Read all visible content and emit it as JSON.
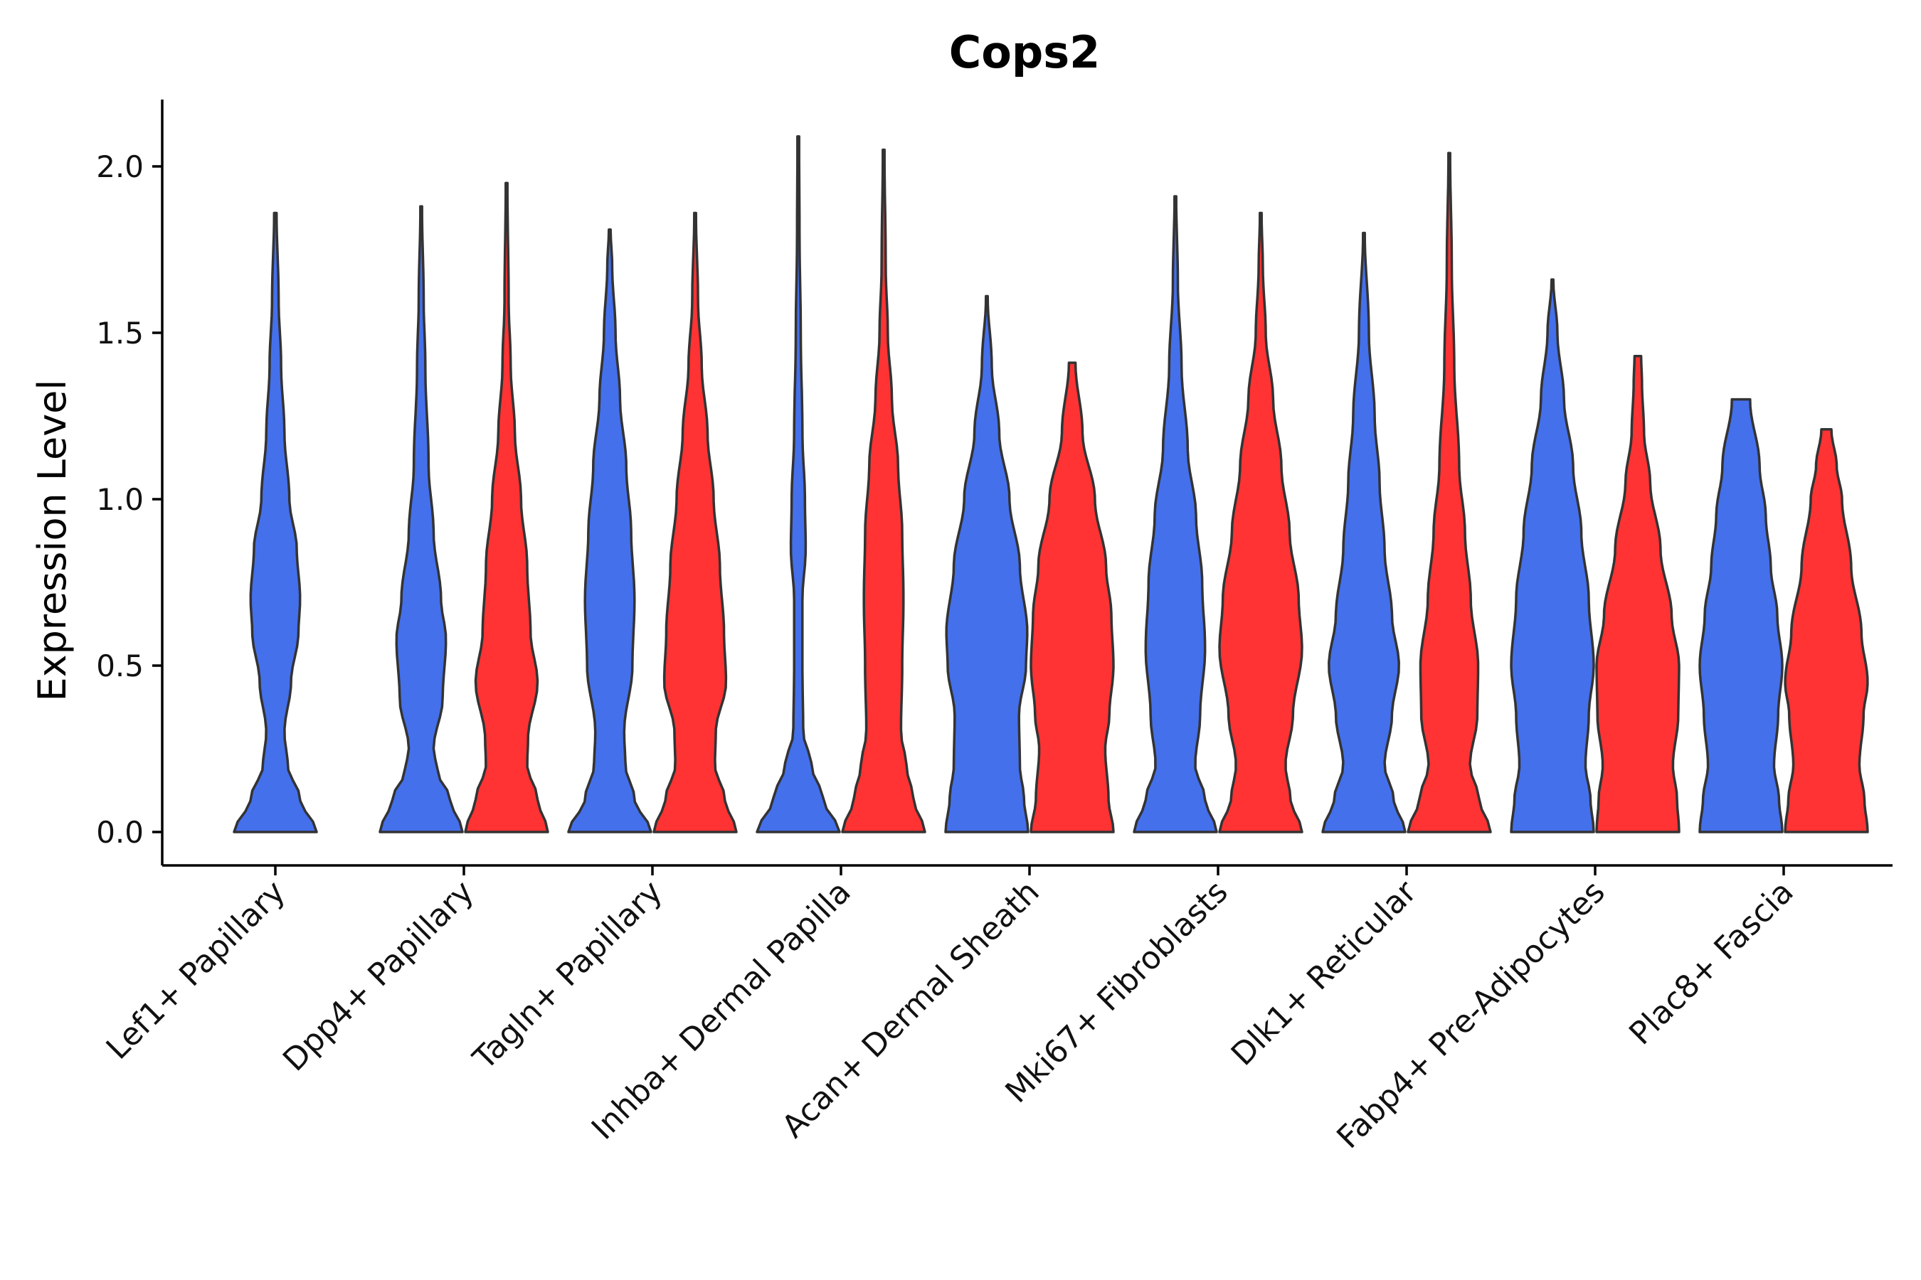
{
  "chart_data": {
    "type": "violin",
    "title": "Cops2",
    "xlabel": "",
    "ylabel": "Expression Level",
    "ylim": [
      -0.1,
      2.2
    ],
    "yticks": [
      "0.0",
      "0.5",
      "1.0",
      "1.5",
      "2.0"
    ],
    "grid": false,
    "legend": "none",
    "colors": {
      "group1": "#4470EC",
      "group2": "#FF3333"
    },
    "categories": [
      "Lef1+ Papillary",
      "Dpp4+ Papillary",
      "Tagln+ Papillary",
      "Inhba+ Dermal Papilla",
      "Acan+ Dermal Sheath",
      "Mki67+ Fibroblasts",
      "Dlk1+ Reticular",
      "Fabp4+ Pre-Adipocytes",
      "Plac8+ Fascia"
    ],
    "violins": [
      {
        "category": 0,
        "group": 1,
        "max": 1.86,
        "profile": [
          [
            0,
            1
          ],
          [
            0.1,
            0.6
          ],
          [
            0.2,
            0.3
          ],
          [
            0.3,
            0.22
          ],
          [
            0.45,
            0.38
          ],
          [
            0.6,
            0.56
          ],
          [
            0.7,
            0.6
          ],
          [
            0.85,
            0.52
          ],
          [
            1.0,
            0.34
          ],
          [
            1.2,
            0.22
          ],
          [
            1.4,
            0.14
          ],
          [
            1.6,
            0.08
          ],
          [
            1.86,
            0.03
          ]
        ]
      },
      {
        "category": 1,
        "group": 1,
        "max": 1.88,
        "profile": [
          [
            0,
            1
          ],
          [
            0.1,
            0.7
          ],
          [
            0.18,
            0.4
          ],
          [
            0.25,
            0.3
          ],
          [
            0.4,
            0.52
          ],
          [
            0.58,
            0.6
          ],
          [
            0.7,
            0.48
          ],
          [
            0.9,
            0.3
          ],
          [
            1.1,
            0.18
          ],
          [
            1.4,
            0.1
          ],
          [
            1.6,
            0.06
          ],
          [
            1.88,
            0.02
          ]
        ]
      },
      {
        "category": 1,
        "group": 2,
        "max": 1.95,
        "profile": [
          [
            0,
            1
          ],
          [
            0.1,
            0.75
          ],
          [
            0.2,
            0.5
          ],
          [
            0.28,
            0.52
          ],
          [
            0.45,
            0.75
          ],
          [
            0.6,
            0.58
          ],
          [
            0.8,
            0.5
          ],
          [
            1.0,
            0.35
          ],
          [
            1.2,
            0.2
          ],
          [
            1.4,
            0.1
          ],
          [
            1.6,
            0.05
          ],
          [
            1.95,
            0.02
          ]
        ]
      },
      {
        "category": 2,
        "group": 1,
        "max": 1.81,
        "profile": [
          [
            0,
            1
          ],
          [
            0.1,
            0.6
          ],
          [
            0.2,
            0.38
          ],
          [
            0.3,
            0.35
          ],
          [
            0.5,
            0.55
          ],
          [
            0.7,
            0.6
          ],
          [
            0.9,
            0.52
          ],
          [
            1.1,
            0.4
          ],
          [
            1.3,
            0.25
          ],
          [
            1.5,
            0.14
          ],
          [
            1.7,
            0.06
          ],
          [
            1.81,
            0.02
          ]
        ]
      },
      {
        "category": 2,
        "group": 2,
        "max": 1.86,
        "profile": [
          [
            0,
            1
          ],
          [
            0.1,
            0.72
          ],
          [
            0.2,
            0.48
          ],
          [
            0.3,
            0.5
          ],
          [
            0.45,
            0.75
          ],
          [
            0.6,
            0.7
          ],
          [
            0.8,
            0.6
          ],
          [
            1.0,
            0.45
          ],
          [
            1.2,
            0.3
          ],
          [
            1.4,
            0.16
          ],
          [
            1.6,
            0.07
          ],
          [
            1.86,
            0.02
          ]
        ]
      },
      {
        "category": 3,
        "group": 1,
        "max": 2.09,
        "profile": [
          [
            0,
            1
          ],
          [
            0.1,
            0.6
          ],
          [
            0.2,
            0.32
          ],
          [
            0.3,
            0.12
          ],
          [
            0.5,
            0.1
          ],
          [
            0.7,
            0.1
          ],
          [
            0.85,
            0.18
          ],
          [
            1.0,
            0.16
          ],
          [
            1.2,
            0.1
          ],
          [
            1.5,
            0.06
          ],
          [
            1.8,
            0.03
          ],
          [
            2.09,
            0.02
          ]
        ]
      },
      {
        "category": 3,
        "group": 2,
        "max": 2.05,
        "profile": [
          [
            0,
            1
          ],
          [
            0.1,
            0.72
          ],
          [
            0.2,
            0.55
          ],
          [
            0.3,
            0.42
          ],
          [
            0.5,
            0.45
          ],
          [
            0.7,
            0.48
          ],
          [
            0.9,
            0.45
          ],
          [
            1.1,
            0.35
          ],
          [
            1.3,
            0.2
          ],
          [
            1.5,
            0.1
          ],
          [
            1.7,
            0.05
          ],
          [
            2.05,
            0.02
          ]
        ]
      },
      {
        "category": 4,
        "group": 1,
        "max": 1.61,
        "profile": [
          [
            0,
            1
          ],
          [
            0.1,
            0.9
          ],
          [
            0.2,
            0.8
          ],
          [
            0.35,
            0.78
          ],
          [
            0.5,
            0.95
          ],
          [
            0.6,
            0.98
          ],
          [
            0.8,
            0.8
          ],
          [
            1.0,
            0.55
          ],
          [
            1.2,
            0.3
          ],
          [
            1.4,
            0.12
          ],
          [
            1.61,
            0.02
          ]
        ]
      },
      {
        "category": 4,
        "group": 2,
        "max": 1.41,
        "profile": [
          [
            0,
            1
          ],
          [
            0.1,
            0.88
          ],
          [
            0.25,
            0.8
          ],
          [
            0.35,
            0.9
          ],
          [
            0.5,
            1.0
          ],
          [
            0.65,
            0.95
          ],
          [
            0.8,
            0.82
          ],
          [
            1.0,
            0.55
          ],
          [
            1.2,
            0.25
          ],
          [
            1.41,
            0.08
          ]
        ]
      },
      {
        "category": 5,
        "group": 1,
        "max": 1.91,
        "profile": [
          [
            0,
            1
          ],
          [
            0.1,
            0.72
          ],
          [
            0.2,
            0.48
          ],
          [
            0.35,
            0.6
          ],
          [
            0.55,
            0.72
          ],
          [
            0.75,
            0.65
          ],
          [
            0.95,
            0.5
          ],
          [
            1.15,
            0.3
          ],
          [
            1.4,
            0.15
          ],
          [
            1.65,
            0.06
          ],
          [
            1.91,
            0.02
          ]
        ]
      },
      {
        "category": 5,
        "group": 2,
        "max": 1.86,
        "profile": [
          [
            0,
            1
          ],
          [
            0.1,
            0.72
          ],
          [
            0.2,
            0.6
          ],
          [
            0.35,
            0.78
          ],
          [
            0.55,
            1.0
          ],
          [
            0.7,
            0.92
          ],
          [
            0.9,
            0.7
          ],
          [
            1.1,
            0.5
          ],
          [
            1.3,
            0.3
          ],
          [
            1.5,
            0.12
          ],
          [
            1.7,
            0.05
          ],
          [
            1.86,
            0.02
          ]
        ]
      },
      {
        "category": 6,
        "group": 1,
        "max": 1.8,
        "profile": [
          [
            0,
            1
          ],
          [
            0.1,
            0.72
          ],
          [
            0.2,
            0.5
          ],
          [
            0.35,
            0.68
          ],
          [
            0.5,
            0.85
          ],
          [
            0.65,
            0.68
          ],
          [
            0.85,
            0.5
          ],
          [
            1.05,
            0.38
          ],
          [
            1.25,
            0.26
          ],
          [
            1.5,
            0.12
          ],
          [
            1.8,
            0.02
          ]
        ]
      },
      {
        "category": 6,
        "group": 2,
        "max": 2.04,
        "profile": [
          [
            0,
            1
          ],
          [
            0.1,
            0.72
          ],
          [
            0.2,
            0.5
          ],
          [
            0.35,
            0.68
          ],
          [
            0.5,
            0.7
          ],
          [
            0.7,
            0.52
          ],
          [
            0.9,
            0.38
          ],
          [
            1.1,
            0.24
          ],
          [
            1.4,
            0.12
          ],
          [
            1.7,
            0.06
          ],
          [
            2.04,
            0.02
          ]
        ]
      },
      {
        "category": 7,
        "group": 1,
        "max": 1.66,
        "profile": [
          [
            0,
            1
          ],
          [
            0.1,
            0.92
          ],
          [
            0.2,
            0.8
          ],
          [
            0.35,
            0.88
          ],
          [
            0.5,
            1.0
          ],
          [
            0.7,
            0.88
          ],
          [
            0.9,
            0.7
          ],
          [
            1.1,
            0.5
          ],
          [
            1.3,
            0.28
          ],
          [
            1.5,
            0.12
          ],
          [
            1.66,
            0.02
          ]
        ]
      },
      {
        "category": 7,
        "group": 2,
        "max": 1.43,
        "profile": [
          [
            0,
            1
          ],
          [
            0.1,
            0.95
          ],
          [
            0.2,
            0.85
          ],
          [
            0.35,
            0.98
          ],
          [
            0.5,
            1.0
          ],
          [
            0.65,
            0.82
          ],
          [
            0.85,
            0.55
          ],
          [
            1.05,
            0.3
          ],
          [
            1.2,
            0.15
          ],
          [
            1.35,
            0.1
          ],
          [
            1.43,
            0.08
          ]
        ]
      },
      {
        "category": 8,
        "group": 1,
        "max": 1.3,
        "profile": [
          [
            0,
            1
          ],
          [
            0.1,
            0.92
          ],
          [
            0.2,
            0.8
          ],
          [
            0.35,
            0.9
          ],
          [
            0.5,
            1.0
          ],
          [
            0.65,
            0.88
          ],
          [
            0.8,
            0.72
          ],
          [
            0.95,
            0.6
          ],
          [
            1.1,
            0.45
          ],
          [
            1.3,
            0.22
          ]
        ]
      },
      {
        "category": 8,
        "group": 2,
        "max": 1.21,
        "profile": [
          [
            0,
            1
          ],
          [
            0.1,
            0.92
          ],
          [
            0.2,
            0.8
          ],
          [
            0.35,
            0.9
          ],
          [
            0.45,
            1.0
          ],
          [
            0.6,
            0.85
          ],
          [
            0.8,
            0.6
          ],
          [
            1.0,
            0.38
          ],
          [
            1.1,
            0.25
          ],
          [
            1.21,
            0.12
          ]
        ]
      }
    ]
  }
}
